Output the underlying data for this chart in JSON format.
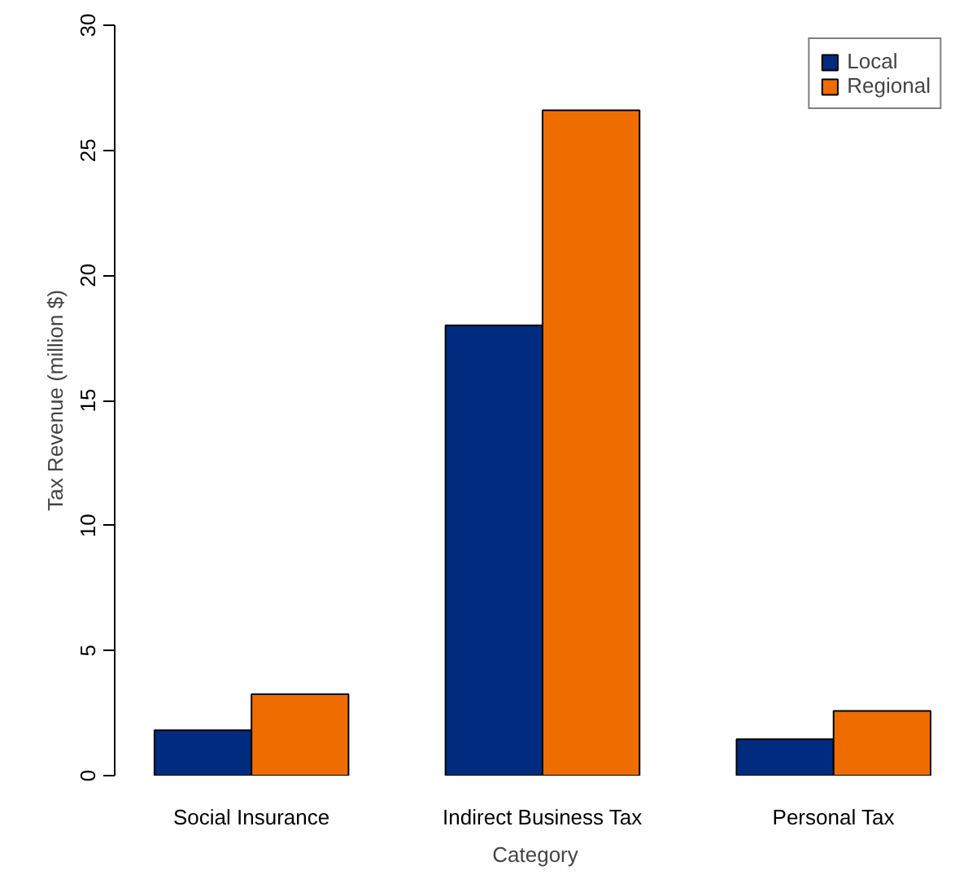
{
  "chart_data": {
    "type": "bar",
    "xlabel": "Category",
    "ylabel": "Tax Revenue (million $)",
    "categories": [
      "Social Insurance",
      "Indirect Business Tax",
      "Personal Tax"
    ],
    "series": [
      {
        "name": "Local",
        "color": "#002b7f",
        "values": [
          1.81,
          18.0,
          1.46
        ]
      },
      {
        "name": "Regional",
        "color": "#ef6c00",
        "values": [
          3.25,
          26.6,
          2.59
        ]
      }
    ],
    "ylim": [
      0,
      30
    ],
    "yticks": [
      0,
      5,
      10,
      15,
      20,
      25,
      30
    ],
    "grid": false,
    "legend": "top right"
  }
}
